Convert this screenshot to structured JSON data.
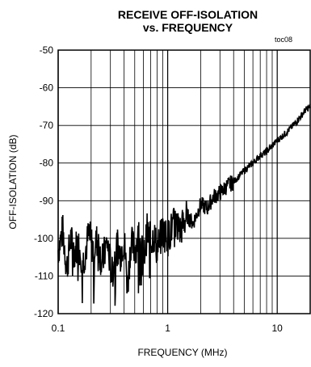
{
  "chart_data": {
    "type": "line",
    "title": "RECEIVE OFF-ISOLATION",
    "subtitle": "vs. FREQUENCY",
    "figure_ref": "toc08",
    "xlabel": "FREQUENCY (MHz)",
    "ylabel": "OFF-ISOLATION (dB)",
    "xscale": "log",
    "xlim": [
      0.1,
      20
    ],
    "ylim": [
      -120,
      -50
    ],
    "xticks": [
      "0.1",
      "1",
      "10"
    ],
    "yticks": [
      "-50",
      "-60",
      "-70",
      "-80",
      "-90",
      "-100",
      "-110",
      "-120"
    ],
    "grid": true,
    "series": [
      {
        "x": [
          0.1,
          0.11,
          0.12,
          0.13,
          0.14,
          0.15,
          0.17,
          0.19,
          0.21,
          0.23,
          0.25,
          0.28,
          0.31,
          0.34,
          0.37,
          0.4,
          0.43,
          0.46,
          0.5,
          0.55,
          0.6,
          0.65,
          0.7,
          0.75,
          0.8,
          0.9,
          1.0,
          1.1,
          1.2,
          1.3,
          1.5,
          1.7,
          2.0,
          2.3,
          2.6,
          3.0,
          3.5,
          4.0,
          5.0,
          6.0,
          7.0,
          8.0,
          10.0,
          12.0,
          14.0,
          16.0,
          18.0,
          20.0
        ],
        "y": [
          -103,
          -98,
          -108,
          -100,
          -104,
          -101,
          -106,
          -99,
          -103,
          -100,
          -107,
          -101,
          -110,
          -102,
          -104,
          -100,
          -113,
          -101,
          -103,
          -99,
          -106,
          -98,
          -101,
          -99,
          -103,
          -98,
          -100,
          -97,
          -96,
          -98,
          -94,
          -96,
          -91,
          -92,
          -89,
          -88,
          -86,
          -85,
          -82,
          -80,
          -78,
          -77,
          -74,
          -72,
          -70,
          -68,
          -66,
          -65
        ]
      }
    ]
  }
}
